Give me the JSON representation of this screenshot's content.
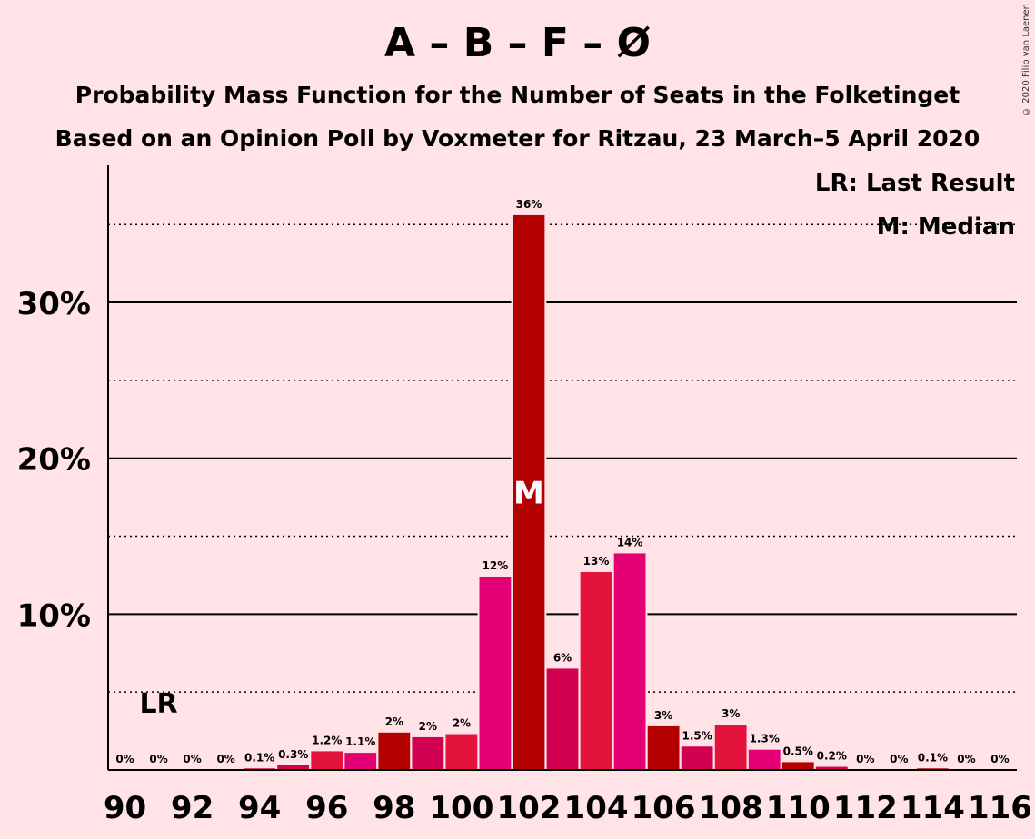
{
  "header": {
    "title": "A – B – F – Ø",
    "subtitle": "Probability Mass Function for the Number of Seats in the Folketinget",
    "subtitle2": "Based on an Opinion Poll by Voxmeter for Ritzau, 23 March–5 April 2020",
    "copyright": "© 2020 Filip van Laenen"
  },
  "chart_data": {
    "type": "bar",
    "x": [
      90,
      91,
      92,
      93,
      94,
      95,
      96,
      97,
      98,
      99,
      100,
      101,
      102,
      103,
      104,
      105,
      106,
      107,
      108,
      109,
      110,
      111,
      112,
      113,
      114,
      115,
      116
    ],
    "values": [
      0,
      0,
      0,
      0,
      0.1,
      0.3,
      1.2,
      1.1,
      2.4,
      2.1,
      2.3,
      12.4,
      35.6,
      6.5,
      12.7,
      13.9,
      2.8,
      1.5,
      2.9,
      1.3,
      0.5,
      0.2,
      0,
      0,
      0.1,
      0,
      0
    ],
    "labels": [
      "0%",
      "0%",
      "0%",
      "0%",
      "0.1%",
      "0.3%",
      "1.2%",
      "1.1%",
      "2%",
      "2%",
      "2%",
      "12%",
      "36%",
      "6%",
      "13%",
      "14%",
      "3%",
      "1.5%",
      "3%",
      "1.3%",
      "0.5%",
      "0.2%",
      "0%",
      "0%",
      "0.1%",
      "0%",
      "0%"
    ],
    "colors": [
      "#E30074",
      "#E30074",
      "#E30074",
      "#E30074",
      "#D10051",
      "#D10051",
      "#E3133C",
      "#E30074",
      "#B30000",
      "#D10051",
      "#E3133C",
      "#E30074",
      "#B30000",
      "#D10051",
      "#E3133C",
      "#E30074",
      "#B30000",
      "#D10051",
      "#E3133C",
      "#E30074",
      "#B30000",
      "#D10051",
      "#E3133C",
      "#E30074",
      "#B30000",
      "#D10051",
      "#E3133C"
    ],
    "xticks": [
      90,
      92,
      94,
      96,
      98,
      100,
      102,
      104,
      106,
      108,
      110,
      112,
      114,
      116
    ],
    "xtick_labels": [
      "90",
      "92",
      "94",
      "96",
      "98",
      "100",
      "102",
      "104",
      "106",
      "108",
      "110",
      "112",
      "114",
      "116"
    ],
    "yticks": [
      10,
      20,
      30
    ],
    "ytick_labels": [
      "10%",
      "20%",
      "30%"
    ],
    "ylim": [
      0,
      38.8
    ],
    "xlim": [
      89.5,
      116.5
    ],
    "last_result": 91,
    "last_result_label": "LR",
    "median": 102,
    "median_label": "M",
    "legend": {
      "placement": "top-right",
      "lr": "LR: Last Result",
      "median": "M: Median"
    }
  }
}
